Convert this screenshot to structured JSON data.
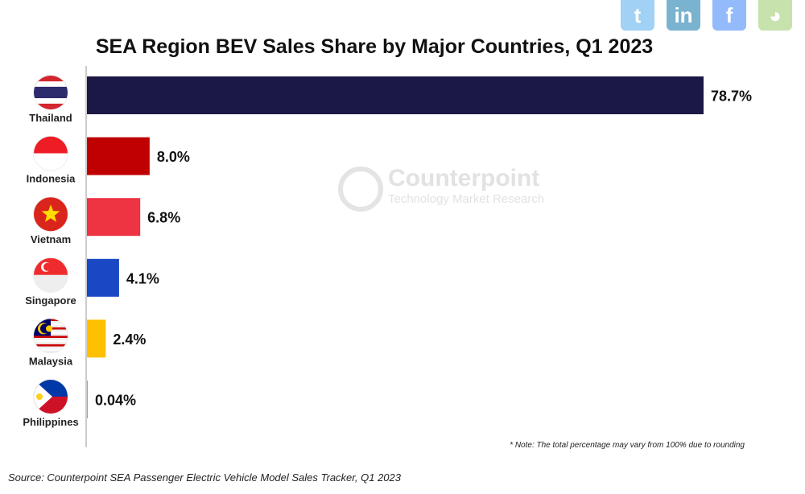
{
  "chart_data": {
    "type": "bar",
    "orientation": "horizontal",
    "title": "SEA Region BEV Sales Share by Major Countries, Q1 2023",
    "categories": [
      "Thailand",
      "Indonesia",
      "Vietnam",
      "Singapore",
      "Malaysia",
      "Philippines"
    ],
    "values": [
      78.7,
      8.0,
      6.8,
      4.1,
      2.4,
      0.04
    ],
    "labels": [
      "78.7%",
      "8.0%",
      "6.8%",
      "4.1%",
      "2.4%",
      "0.04%"
    ],
    "colors": [
      "#1b1845",
      "#c00000",
      "#ee3342",
      "#1a47c4",
      "#ffc000",
      "#9aa0b0"
    ],
    "xlim": [
      0,
      80
    ],
    "unit": "%",
    "grid": false,
    "note": "* Note: The total percentage may vary from 100% due to rounding",
    "source": "Source: Counterpoint SEA Passenger Electric Vehicle Model Sales Tracker, Q1 2023"
  },
  "watermark": {
    "brand": "Counterpoint",
    "tagline": "Technology Market Research"
  },
  "social": [
    {
      "icon": "twitter-icon",
      "glyph": "t",
      "color": "#55acee"
    },
    {
      "icon": "linkedin-icon",
      "glyph": "in",
      "color": "#0e76a8"
    },
    {
      "icon": "facebook-icon",
      "glyph": "f",
      "color": "#3b82f6"
    },
    {
      "icon": "wechat-icon",
      "glyph": "◕",
      "color": "#9ccb6b"
    }
  ]
}
